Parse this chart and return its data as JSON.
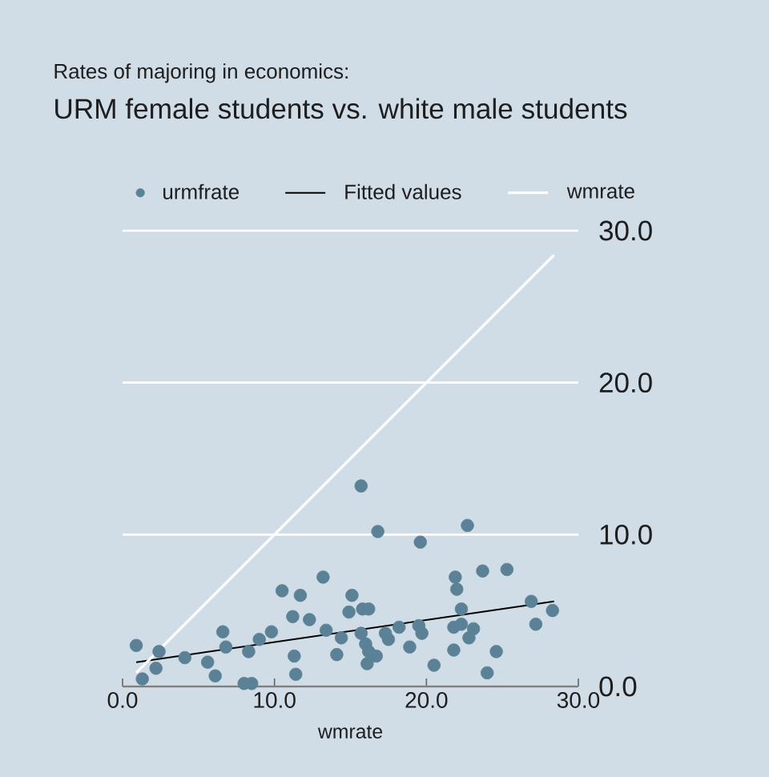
{
  "chart_data": {
    "type": "scatter",
    "subtitle": "Rates of majoring in economics:",
    "title": "URM female students vs. white male students",
    "xlabel": "wmrate",
    "series": [
      {
        "name": "urmfrate",
        "color": "#5a8196",
        "marker": "circle",
        "x": [
          0.9,
          1.3,
          2.2,
          2.4,
          4.1,
          5.6,
          6.1,
          6.6,
          6.8,
          8.0,
          8.5,
          8.3,
          9.0,
          9.8,
          10.5,
          11.2,
          11.7,
          11.3,
          11.4,
          12.3,
          13.2,
          13.4,
          14.1,
          14.4,
          14.9,
          15.1,
          15.7,
          15.8,
          16.2,
          15.7,
          16.0,
          16.2,
          16.1,
          16.7,
          16.8,
          17.3,
          17.5,
          18.2,
          18.9,
          19.5,
          19.6,
          19.7,
          20.5,
          21.8,
          21.8,
          21.9,
          22.0,
          22.3,
          22.3,
          22.7,
          22.8,
          23.1,
          23.7,
          24.0,
          24.6,
          25.3,
          26.9,
          27.2,
          28.3
        ],
        "values": [
          2.7,
          0.5,
          1.2,
          2.3,
          1.9,
          1.6,
          0.7,
          3.6,
          2.6,
          0.2,
          0.2,
          2.3,
          3.1,
          3.6,
          6.3,
          4.6,
          6.0,
          2.0,
          0.8,
          4.4,
          7.2,
          3.7,
          2.1,
          3.2,
          4.9,
          6.0,
          13.2,
          5.1,
          5.1,
          3.5,
          2.8,
          2.3,
          1.5,
          2.0,
          10.2,
          3.5,
          3.1,
          3.9,
          2.6,
          4.0,
          9.5,
          3.5,
          1.4,
          2.4,
          3.9,
          7.2,
          6.4,
          5.1,
          4.1,
          10.6,
          3.2,
          3.8,
          7.6,
          0.9,
          2.3,
          7.7,
          5.6,
          4.1,
          5.0
        ]
      },
      {
        "name": "Fitted values",
        "type": "line",
        "color": "#000000",
        "x": [
          0.9,
          28.4
        ],
        "values": [
          1.6,
          5.6
        ]
      },
      {
        "name": "wmrate",
        "type": "line",
        "color": "#ffffff",
        "x": [
          0.9,
          28.4
        ],
        "values": [
          0.9,
          28.4
        ]
      }
    ],
    "xlim": [
      0,
      30
    ],
    "ylim": [
      0,
      30
    ],
    "xticks": [
      {
        "value": 0,
        "label": "0.0"
      },
      {
        "value": 10,
        "label": "10.0"
      },
      {
        "value": 20,
        "label": "20.0"
      },
      {
        "value": 30,
        "label": "30.0"
      }
    ],
    "yticks": [
      {
        "value": 0,
        "label": "0.0"
      },
      {
        "value": 10,
        "label": "10.0"
      },
      {
        "value": 20,
        "label": "20.0"
      },
      {
        "value": 30,
        "label": "30.0"
      }
    ],
    "grid": "y",
    "legend": "top"
  }
}
